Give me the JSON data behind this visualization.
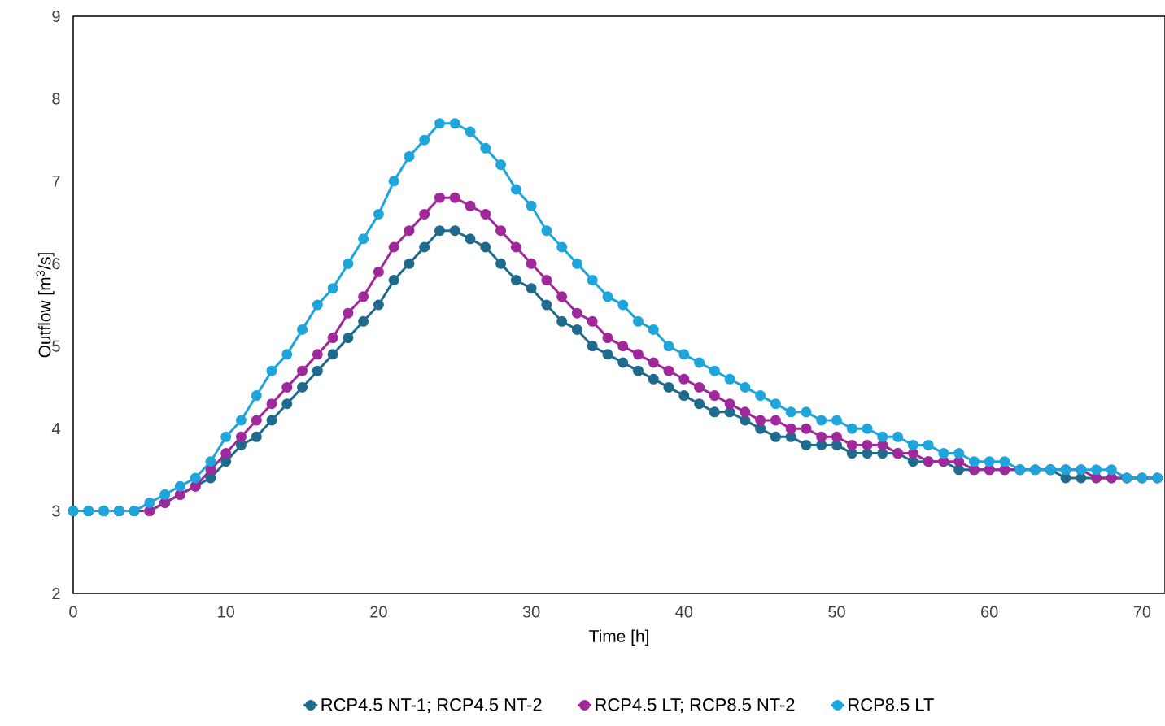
{
  "chart_data": {
    "type": "line",
    "xlabel": "Time [h]",
    "ylabel": "Outflow [m$^{3}$/s]",
    "x": [
      0,
      1,
      2,
      3,
      4,
      5,
      6,
      7,
      8,
      9,
      10,
      11,
      12,
      13,
      14,
      15,
      16,
      17,
      18,
      19,
      20,
      21,
      22,
      23,
      24,
      25,
      26,
      27,
      28,
      29,
      30,
      31,
      32,
      33,
      34,
      35,
      36,
      37,
      38,
      39,
      40,
      41,
      42,
      43,
      44,
      45,
      46,
      47,
      48,
      49,
      50,
      51,
      52,
      53,
      54,
      55,
      56,
      57,
      58,
      59,
      60,
      61,
      62,
      63,
      64,
      65,
      66,
      67,
      68,
      69,
      70,
      71
    ],
    "series": [
      {
        "name": "RCP4.5 NT-1; RCP4.5 NT-2",
        "color": "#1f6b8e",
        "values": [
          3.0,
          3.0,
          3.0,
          3.0,
          3.0,
          3.0,
          3.1,
          3.2,
          3.3,
          3.4,
          3.6,
          3.8,
          3.9,
          4.1,
          4.3,
          4.5,
          4.7,
          4.9,
          5.1,
          5.3,
          5.5,
          5.8,
          6.0,
          6.2,
          6.4,
          6.4,
          6.3,
          6.2,
          6.0,
          5.8,
          5.7,
          5.5,
          5.3,
          5.2,
          5.0,
          4.9,
          4.8,
          4.7,
          4.6,
          4.5,
          4.4,
          4.3,
          4.2,
          4.2,
          4.1,
          4.0,
          3.9,
          3.9,
          3.8,
          3.8,
          3.8,
          3.7,
          3.7,
          3.7,
          3.7,
          3.6,
          3.6,
          3.6,
          3.5,
          3.5,
          3.5,
          3.5,
          3.5,
          3.5,
          3.5,
          3.4,
          3.4,
          3.4,
          3.4,
          3.4,
          3.4,
          3.4
        ]
      },
      {
        "name": "RCP4.5  LT; RCP8.5 NT-2",
        "color": "#a0289c",
        "values": [
          null,
          null,
          null,
          3.0,
          null,
          3.0,
          3.1,
          3.2,
          3.3,
          3.5,
          3.7,
          3.9,
          4.1,
          4.3,
          4.5,
          4.7,
          4.9,
          5.1,
          5.4,
          5.6,
          5.9,
          6.2,
          6.4,
          6.6,
          6.8,
          6.8,
          6.7,
          6.6,
          6.4,
          6.2,
          6.0,
          5.8,
          5.6,
          5.4,
          5.3,
          5.1,
          5.0,
          4.9,
          4.8,
          4.7,
          4.6,
          4.5,
          4.4,
          4.3,
          4.2,
          4.1,
          4.1,
          4.0,
          4.0,
          3.9,
          3.9,
          3.8,
          3.8,
          3.8,
          3.7,
          3.7,
          3.6,
          3.6,
          3.6,
          3.5,
          3.5,
          3.5,
          3.5,
          null,
          3.5,
          3.5,
          3.5,
          3.4,
          3.4,
          3.4,
          3.4,
          3.4
        ]
      },
      {
        "name": "RCP8.5 LT",
        "color": "#1ea6dc",
        "values": [
          3.0,
          3.0,
          3.0,
          3.0,
          3.0,
          3.1,
          3.2,
          3.3,
          3.4,
          3.6,
          3.9,
          4.1,
          4.4,
          4.7,
          4.9,
          5.2,
          5.5,
          5.7,
          6.0,
          6.3,
          6.6,
          7.0,
          7.3,
          7.5,
          7.7,
          7.7,
          7.6,
          7.4,
          7.2,
          6.9,
          6.7,
          6.4,
          6.2,
          6.0,
          5.8,
          5.6,
          5.5,
          5.3,
          5.2,
          5.0,
          4.9,
          4.8,
          4.7,
          4.6,
          4.5,
          4.4,
          4.3,
          4.2,
          4.2,
          4.1,
          4.1,
          4.0,
          4.0,
          3.9,
          3.9,
          3.8,
          3.8,
          3.7,
          3.7,
          3.6,
          3.6,
          3.6,
          3.5,
          3.5,
          3.5,
          3.5,
          3.5,
          3.5,
          3.5,
          3.4,
          3.4,
          3.4
        ]
      }
    ],
    "xlim": [
      0,
      71.5
    ],
    "xticks": [
      0,
      10,
      20,
      30,
      40,
      50,
      60,
      70
    ],
    "ylim": [
      2,
      9
    ],
    "yticks": [
      2,
      3,
      4,
      5,
      6,
      7,
      8,
      9
    ],
    "grid": false,
    "legend": "bottom",
    "marker": "circle",
    "line_style": "solid"
  }
}
